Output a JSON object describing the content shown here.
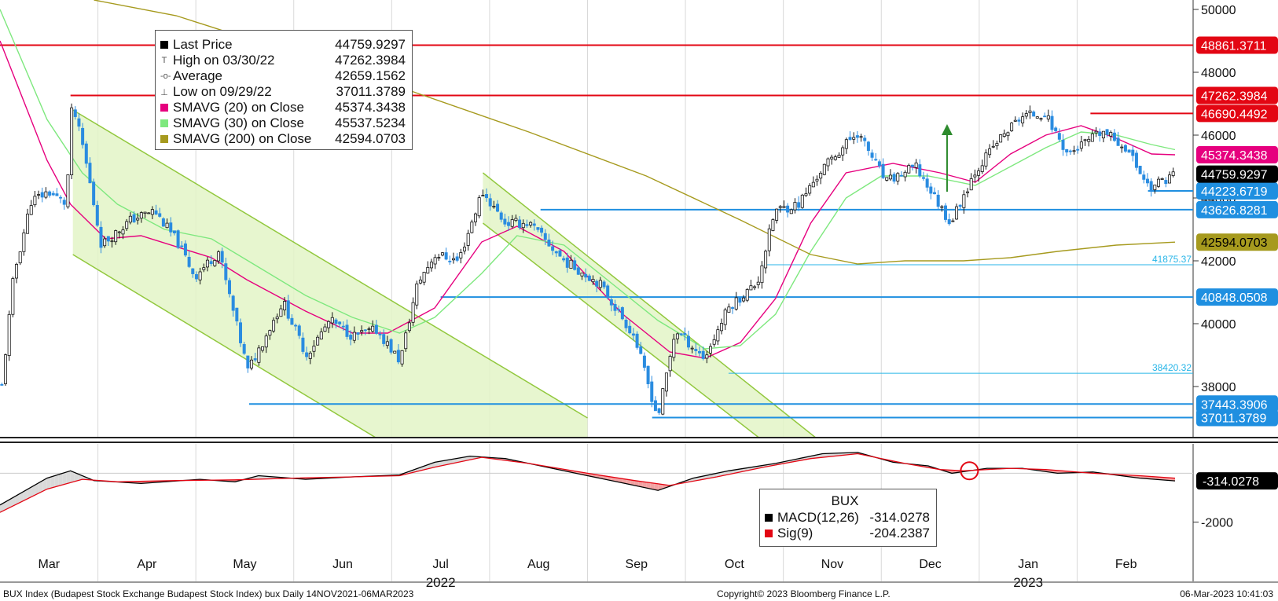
{
  "chart_data": {
    "type": "candlestick",
    "title": "BUX Index (Budapest Stock Exchange Budapest Stock Index) bux  Daily 14NOV2021-06MAR2023",
    "y_ticks": [
      38000,
      40000,
      42000,
      44000,
      46000,
      48000,
      50000
    ],
    "y_tick_labels": [
      "38000",
      "40000",
      "42000",
      "44000",
      "46000",
      "48000",
      "50000"
    ],
    "ylim": [
      36400,
      50300
    ],
    "x_month_labels": [
      "Mar",
      "Apr",
      "May",
      "Jun",
      "Jul",
      "Aug",
      "Sep",
      "Oct",
      "Nov",
      "Dec",
      "Jan",
      "Feb"
    ],
    "x_year_labels": [
      "2022",
      "2023"
    ],
    "price_path": [
      [
        0,
        38000
      ],
      [
        0.01,
        41500
      ],
      [
        0.025,
        43900
      ],
      [
        0.04,
        44200
      ],
      [
        0.055,
        43800
      ],
      [
        0.06,
        47000
      ],
      [
        0.07,
        45500
      ],
      [
        0.085,
        42500
      ],
      [
        0.11,
        43300
      ],
      [
        0.13,
        43600
      ],
      [
        0.15,
        42600
      ],
      [
        0.165,
        41500
      ],
      [
        0.185,
        42300
      ],
      [
        0.21,
        38500
      ],
      [
        0.24,
        40700
      ],
      [
        0.26,
        39000
      ],
      [
        0.28,
        40100
      ],
      [
        0.3,
        39600
      ],
      [
        0.32,
        39800
      ],
      [
        0.34,
        38800
      ],
      [
        0.355,
        41300
      ],
      [
        0.37,
        42200
      ],
      [
        0.39,
        42000
      ],
      [
        0.41,
        44200
      ],
      [
        0.43,
        43200
      ],
      [
        0.45,
        43200
      ],
      [
        0.48,
        42000
      ],
      [
        0.51,
        41300
      ],
      [
        0.54,
        39600
      ],
      [
        0.56,
        37000
      ],
      [
        0.575,
        39800
      ],
      [
        0.6,
        38900
      ],
      [
        0.62,
        40500
      ],
      [
        0.645,
        41300
      ],
      [
        0.66,
        43600
      ],
      [
        0.68,
        43800
      ],
      [
        0.7,
        44900
      ],
      [
        0.73,
        46100
      ],
      [
        0.74,
        45500
      ],
      [
        0.755,
        44500
      ],
      [
        0.78,
        45000
      ],
      [
        0.81,
        43200
      ],
      [
        0.83,
        44800
      ],
      [
        0.85,
        45800
      ],
      [
        0.87,
        46600
      ],
      [
        0.89,
        46700
      ],
      [
        0.91,
        45400
      ],
      [
        0.94,
        46100
      ],
      [
        0.96,
        45600
      ],
      [
        0.98,
        44300
      ],
      [
        1.0,
        44760
      ]
    ],
    "series": [
      {
        "name": "SMAVG (20)  on Close",
        "color": "#e6007e",
        "path": [
          [
            0,
            49000
          ],
          [
            0.04,
            45200
          ],
          [
            0.06,
            43800
          ],
          [
            0.09,
            42700
          ],
          [
            0.12,
            42800
          ],
          [
            0.18,
            42100
          ],
          [
            0.21,
            41400
          ],
          [
            0.26,
            40400
          ],
          [
            0.3,
            39700
          ],
          [
            0.33,
            39700
          ],
          [
            0.37,
            40500
          ],
          [
            0.41,
            42600
          ],
          [
            0.44,
            43100
          ],
          [
            0.48,
            42300
          ],
          [
            0.53,
            40300
          ],
          [
            0.57,
            39100
          ],
          [
            0.6,
            38900
          ],
          [
            0.63,
            39400
          ],
          [
            0.66,
            40800
          ],
          [
            0.69,
            43200
          ],
          [
            0.72,
            44800
          ],
          [
            0.76,
            45100
          ],
          [
            0.8,
            44800
          ],
          [
            0.83,
            44500
          ],
          [
            0.86,
            45400
          ],
          [
            0.89,
            46000
          ],
          [
            0.92,
            46300
          ],
          [
            0.95,
            45900
          ],
          [
            0.98,
            45400
          ],
          [
            1.0,
            45374
          ]
        ]
      },
      {
        "name": "SMAVG (30)  on Close",
        "color": "#7ee87e",
        "path": [
          [
            0,
            50000
          ],
          [
            0.04,
            46500
          ],
          [
            0.07,
            44800
          ],
          [
            0.1,
            43800
          ],
          [
            0.14,
            43000
          ],
          [
            0.18,
            42700
          ],
          [
            0.22,
            41800
          ],
          [
            0.26,
            40900
          ],
          [
            0.3,
            40200
          ],
          [
            0.34,
            39700
          ],
          [
            0.37,
            40200
          ],
          [
            0.41,
            41600
          ],
          [
            0.44,
            42800
          ],
          [
            0.48,
            42500
          ],
          [
            0.52,
            41300
          ],
          [
            0.56,
            40100
          ],
          [
            0.6,
            39200
          ],
          [
            0.63,
            39300
          ],
          [
            0.66,
            40300
          ],
          [
            0.69,
            42300
          ],
          [
            0.72,
            44000
          ],
          [
            0.75,
            44700
          ],
          [
            0.79,
            44700
          ],
          [
            0.83,
            44400
          ],
          [
            0.86,
            45000
          ],
          [
            0.89,
            45600
          ],
          [
            0.92,
            46100
          ],
          [
            0.95,
            46000
          ],
          [
            0.98,
            45700
          ],
          [
            1.0,
            45537
          ]
        ]
      },
      {
        "name": "SMAVG (200)  on Close",
        "color": "#a69a1e",
        "path": [
          [
            0.08,
            50300
          ],
          [
            0.15,
            49800
          ],
          [
            0.25,
            48600
          ],
          [
            0.35,
            47400
          ],
          [
            0.45,
            46100
          ],
          [
            0.55,
            44700
          ],
          [
            0.63,
            43300
          ],
          [
            0.69,
            42200
          ],
          [
            0.73,
            41900
          ],
          [
            0.77,
            42000
          ],
          [
            0.82,
            42000
          ],
          [
            0.86,
            42100
          ],
          [
            0.9,
            42300
          ],
          [
            0.95,
            42500
          ],
          [
            1.0,
            42594
          ]
        ]
      }
    ],
    "channels": [
      {
        "upper": [
          [
            0.062,
            46800
          ],
          [
            0.5,
            37000
          ]
        ],
        "lower": [
          [
            0.062,
            42200
          ],
          [
            0.5,
            32300
          ]
        ]
      },
      {
        "upper": [
          [
            0.411,
            44800
          ],
          [
            0.7,
            36200
          ]
        ],
        "lower": [
          [
            0.411,
            43200
          ],
          [
            0.7,
            34800
          ]
        ]
      }
    ],
    "up_arrow": {
      "x": 0.806,
      "from": 44200,
      "to": 46300
    },
    "hlines": [
      {
        "value": 48861.3711,
        "label": "48861.3711",
        "color": "#e30613",
        "from": 0,
        "tag": true
      },
      {
        "value": 47262.3984,
        "label": "47262.3984",
        "color": "#e30613",
        "from": 0.06,
        "tag": true
      },
      {
        "value": 46690.4492,
        "label": "46690.4492",
        "color": "#e30613",
        "from": 0.928,
        "tag": true
      },
      {
        "value": 44223.6719,
        "label": "44223.6719",
        "color": "#1f8fe0",
        "from": 0.977,
        "tag": true
      },
      {
        "value": 43626.8281,
        "label": "43626.8281",
        "color": "#1f8fe0",
        "from": 0.46,
        "tag": true
      },
      {
        "value": 41875.37,
        "label": "41875.37",
        "color": "#29b6e8",
        "from": 0.65,
        "tag": false
      },
      {
        "value": 40848.0508,
        "label": "40848.0508",
        "color": "#1f8fe0",
        "from": 0.375,
        "tag": true
      },
      {
        "value": 38420.32,
        "label": "38420.32",
        "color": "#29b6e8",
        "from": 0.62,
        "tag": false
      },
      {
        "value": 37443.3906,
        "label": "37443.3906",
        "color": "#1f8fe0",
        "from": 0.212,
        "tag": true
      },
      {
        "value": 37011.3789,
        "label": "37011.3789",
        "color": "#1f8fe0",
        "from": 0.555,
        "tag": true
      }
    ],
    "right_tags": [
      {
        "value": 45374.3438,
        "label": "45374.3438",
        "bg": "#e6007e",
        "fg": "#ffffff"
      },
      {
        "value": 44759.9297,
        "label": "44759.9297",
        "bg": "#000000",
        "fg": "#ffffff"
      },
      {
        "value": 42594.0703,
        "label": "42594.0703",
        "bg": "#a69a1e",
        "fg": "#000000"
      }
    ],
    "legend": [
      {
        "kind": "square",
        "color": "#000000",
        "name": "Last Price",
        "value": "44759.9297"
      },
      {
        "kind": "icon",
        "icon": "T",
        "name": "High on 03/30/22",
        "value": "47262.3984"
      },
      {
        "kind": "icon",
        "icon": "-o-",
        "name": "Average",
        "value": "42659.1562"
      },
      {
        "kind": "icon",
        "icon": "⊥",
        "name": "Low on 09/29/22",
        "value": "37011.3789"
      },
      {
        "kind": "square",
        "color": "#e6007e",
        "name": "SMAVG (20)  on Close",
        "value": "45374.3438"
      },
      {
        "kind": "square",
        "color": "#7ee87e",
        "name": "SMAVG (30)  on Close",
        "value": "45537.5234"
      },
      {
        "kind": "square",
        "color": "#a69a1e",
        "name": "SMAVG (200)  on Close",
        "value": "42594.0703"
      }
    ],
    "macd": {
      "title": "BUX",
      "ylim": [
        -3200,
        1200
      ],
      "y_ticks": [
        -2000
      ],
      "y_tick_labels": [
        "-2000"
      ],
      "macd_value": "-314.0278",
      "legend": [
        {
          "color": "#000000",
          "name": "MACD(12,26)",
          "value": "-314.0278"
        },
        {
          "color": "#e30613",
          "name": "Sig(9)",
          "value": "-204.2387"
        }
      ],
      "macd_path": [
        [
          0,
          -1300
        ],
        [
          0.04,
          -200
        ],
        [
          0.06,
          100
        ],
        [
          0.08,
          -300
        ],
        [
          0.12,
          -420
        ],
        [
          0.17,
          -250
        ],
        [
          0.2,
          -350
        ],
        [
          0.22,
          -100
        ],
        [
          0.26,
          -250
        ],
        [
          0.3,
          -150
        ],
        [
          0.34,
          -70
        ],
        [
          0.37,
          450
        ],
        [
          0.4,
          700
        ],
        [
          0.43,
          600
        ],
        [
          0.46,
          300
        ],
        [
          0.5,
          -100
        ],
        [
          0.53,
          -400
        ],
        [
          0.56,
          -700
        ],
        [
          0.59,
          -200
        ],
        [
          0.62,
          100
        ],
        [
          0.66,
          400
        ],
        [
          0.7,
          800
        ],
        [
          0.73,
          850
        ],
        [
          0.76,
          450
        ],
        [
          0.79,
          300
        ],
        [
          0.81,
          0
        ],
        [
          0.84,
          200
        ],
        [
          0.87,
          200
        ],
        [
          0.9,
          0
        ],
        [
          0.93,
          50
        ],
        [
          0.97,
          -200
        ],
        [
          1.0,
          -314
        ]
      ],
      "sig_path": [
        [
          0,
          -1600
        ],
        [
          0.04,
          -650
        ],
        [
          0.07,
          -250
        ],
        [
          0.1,
          -350
        ],
        [
          0.15,
          -300
        ],
        [
          0.2,
          -270
        ],
        [
          0.25,
          -200
        ],
        [
          0.3,
          -150
        ],
        [
          0.34,
          -100
        ],
        [
          0.37,
          250
        ],
        [
          0.41,
          650
        ],
        [
          0.45,
          400
        ],
        [
          0.5,
          0
        ],
        [
          0.54,
          -300
        ],
        [
          0.57,
          -500
        ],
        [
          0.61,
          -150
        ],
        [
          0.65,
          250
        ],
        [
          0.69,
          600
        ],
        [
          0.73,
          800
        ],
        [
          0.77,
          400
        ],
        [
          0.8,
          150
        ],
        [
          0.82,
          100
        ],
        [
          0.86,
          200
        ],
        [
          0.89,
          150
        ],
        [
          0.93,
          0
        ],
        [
          0.97,
          -100
        ],
        [
          1.0,
          -204
        ]
      ],
      "marker_x": 0.825
    }
  },
  "footer": {
    "left": "BUX Index (Budapest Stock Exchange Budapest Stock Index) bux  Daily 14NOV2021-06MAR2023",
    "center": "Copyright© 2023 Bloomberg Finance L.P.",
    "right": "06-Mar-2023 10:41:03"
  }
}
